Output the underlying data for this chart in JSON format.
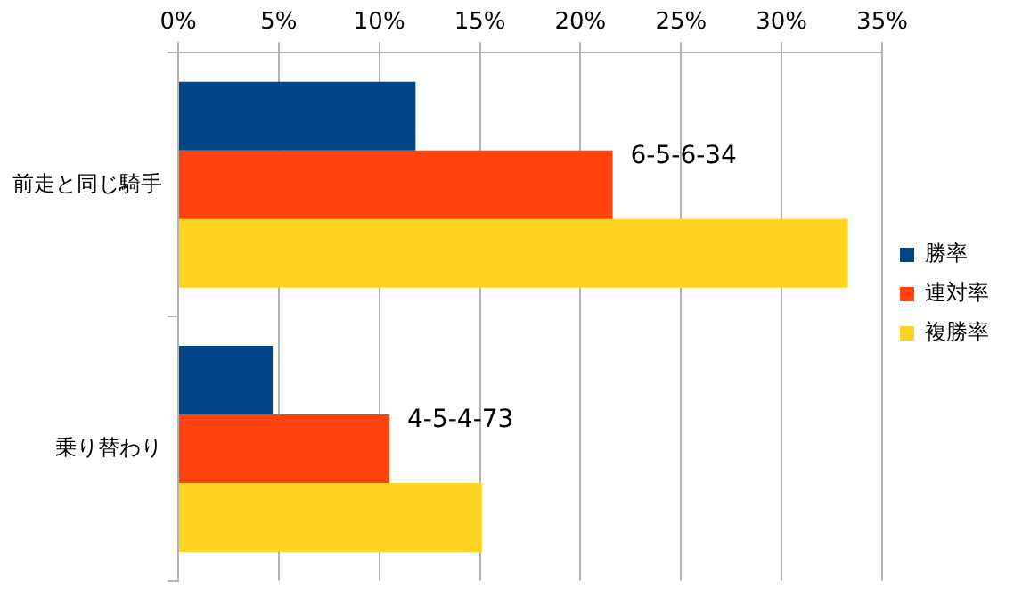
{
  "chart_data": {
    "type": "bar",
    "orientation": "horizontal",
    "categories": [
      "前走と同じ騎手",
      "乗り替わり"
    ],
    "series": [
      {
        "name": "勝率",
        "color": "#004586",
        "values": [
          11.8,
          4.7
        ]
      },
      {
        "name": "連対率",
        "color": "#ff420e",
        "values": [
          21.6,
          10.5
        ]
      },
      {
        "name": "複勝率",
        "color": "#ffd320",
        "values": [
          33.3,
          15.1
        ]
      }
    ],
    "xlim": [
      0,
      35
    ],
    "xticks": [
      {
        "value": 0,
        "label": "0%"
      },
      {
        "value": 5,
        "label": "5%"
      },
      {
        "value": 10,
        "label": "10%"
      },
      {
        "value": 15,
        "label": "15%"
      },
      {
        "value": 20,
        "label": "20%"
      },
      {
        "value": 25,
        "label": "25%"
      },
      {
        "value": 30,
        "label": "30%"
      },
      {
        "value": 35,
        "label": "35%"
      }
    ],
    "annotations": [
      {
        "text": "6-5-6-34",
        "x": 21.6,
        "y": "前走と同じ騎手"
      },
      {
        "text": "4-5-4-73",
        "x": 10.5,
        "y": "乗り替わり"
      }
    ],
    "grid": "x",
    "legend": "right"
  }
}
